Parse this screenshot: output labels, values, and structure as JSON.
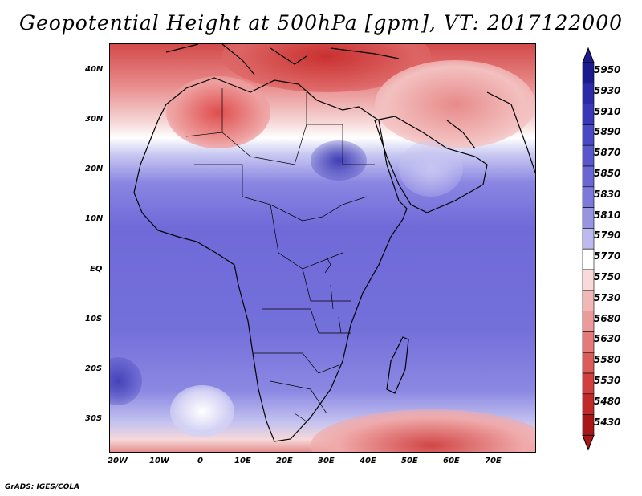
{
  "title": "Geopotential Height at 500hPa [gpm], VT: 2017122000",
  "credit": "GrADS: IGES/COLA",
  "lat_labels": [
    "40N",
    "30N",
    "20N",
    "10N",
    "EQ",
    "10S",
    "20S",
    "30S"
  ],
  "lon_labels": [
    "20W",
    "10W",
    "0",
    "10E",
    "20E",
    "30E",
    "40E",
    "50E",
    "60E",
    "70E"
  ],
  "colorbar": {
    "levels": [
      "5950",
      "5930",
      "5910",
      "5890",
      "5870",
      "5850",
      "5830",
      "5810",
      "5790",
      "5770",
      "5750",
      "5730",
      "5680",
      "5630",
      "5580",
      "5530",
      "5480",
      "5430"
    ],
    "colors": [
      "#1c1a8e",
      "#2c2aa8",
      "#3a38b8",
      "#4a48c4",
      "#5a57cc",
      "#6a66d4",
      "#7c78dc",
      "#9894e4",
      "#bdbaf0",
      "#ffffff",
      "#f8dada",
      "#f2b8b8",
      "#ec9a9a",
      "#e47a7a",
      "#dc5c5c",
      "#d33f3f",
      "#c22a2a",
      "#a81616"
    ]
  }
}
